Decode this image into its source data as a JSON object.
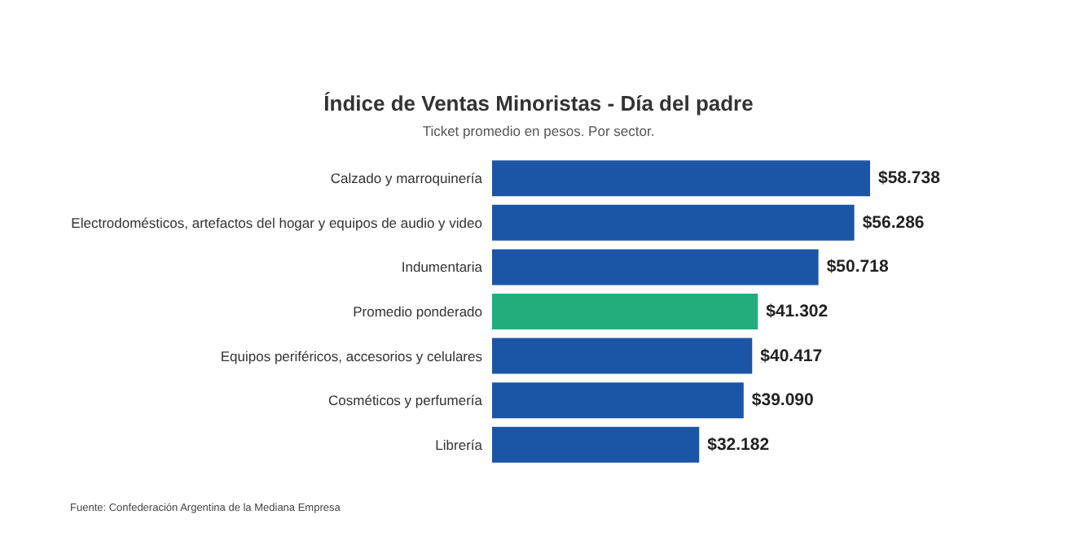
{
  "chart_data": {
    "type": "bar",
    "orientation": "horizontal",
    "title": "Índice de Ventas Minoristas - Día del padre",
    "subtitle": "Ticket promedio en pesos. Por sector.",
    "categories": [
      "Calzado y marroquinería",
      "Electrodomésticos, artefactos del hogar y equipos de audio y video",
      "Indumentaria",
      "Promedio ponderado",
      "Equipos periféricos, accesorios y celulares",
      "Cosméticos y perfumería",
      "Librería"
    ],
    "values": [
      58738,
      56286,
      50718,
      41302,
      40417,
      39090,
      32182
    ],
    "colors": [
      "#1b55a5",
      "#1b55a5",
      "#1b55a5",
      "#23ad7c",
      "#1b55a5",
      "#1b55a5",
      "#1b55a5"
    ],
    "value_labels": [
      "$58.738",
      "$56.286",
      "$50.718",
      "$41.302",
      "$40.417",
      "$39.090",
      "$32.182"
    ],
    "annotations": [
      "Fuente: Confederación Argentina de la Mediana Empresa"
    ],
    "grid": false
  }
}
